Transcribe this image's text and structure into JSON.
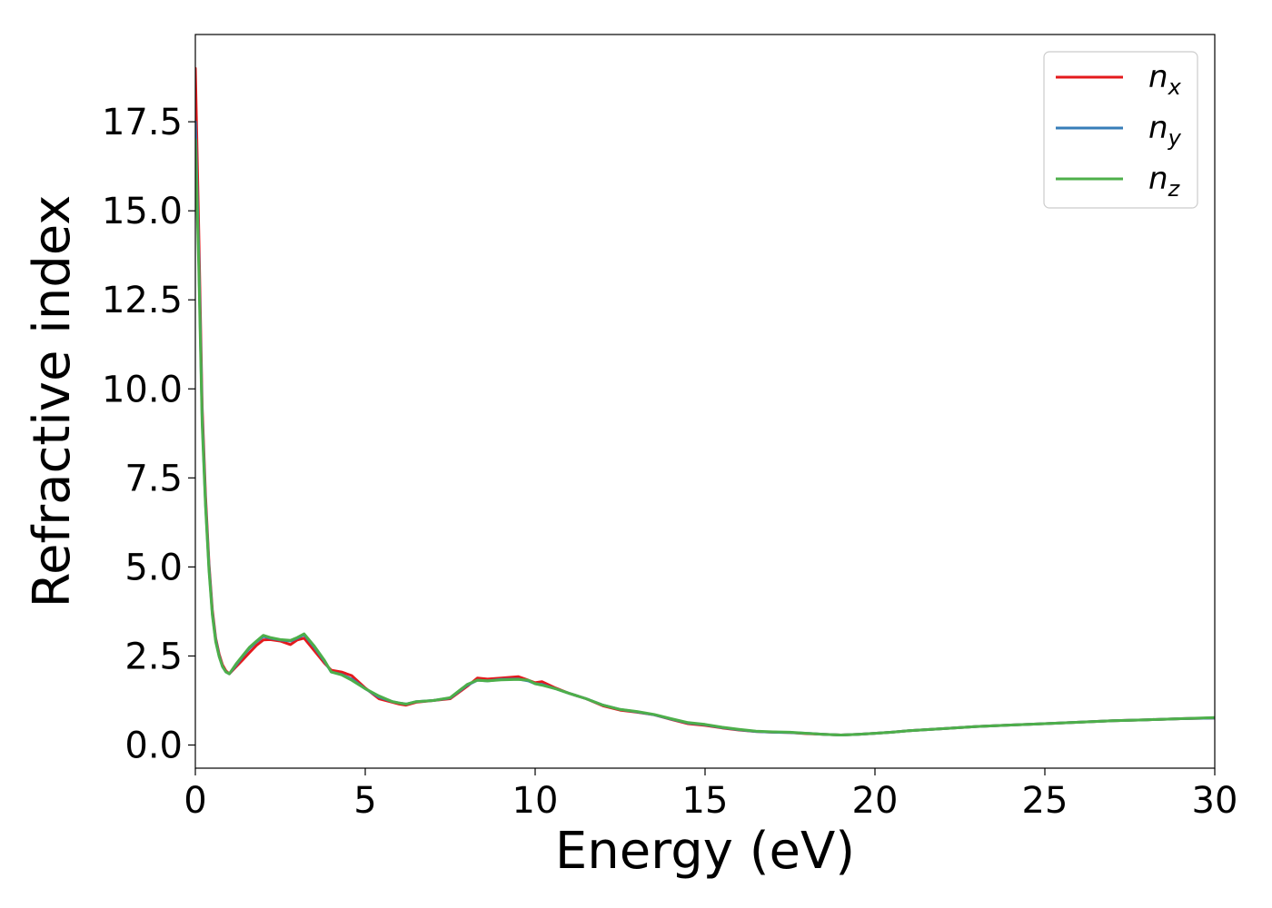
{
  "chart_data": {
    "type": "line",
    "title": "",
    "xlabel": "Energy (eV)",
    "ylabel": "Refractive index",
    "xlim": [
      0,
      30
    ],
    "ylim": [
      -0.65,
      19.95
    ],
    "xticks": [
      "0",
      "5",
      "10",
      "15",
      "20",
      "25",
      "30"
    ],
    "yticks": [
      "0.0",
      "2.5",
      "5.0",
      "7.5",
      "10.0",
      "12.5",
      "15.0",
      "17.5"
    ],
    "grid": false,
    "legend_position": "top-right",
    "series": [
      {
        "name": "n",
        "subscript": "x",
        "color": "#e41a1c",
        "x": [
          0,
          0.1,
          0.2,
          0.3,
          0.4,
          0.5,
          0.6,
          0.7,
          0.8,
          0.9,
          1.0,
          1.2,
          1.4,
          1.6,
          1.8,
          2.0,
          2.2,
          2.5,
          2.8,
          3.0,
          3.2,
          3.5,
          3.8,
          4.0,
          4.3,
          4.6,
          5.0,
          5.4,
          5.8,
          6.0,
          6.2,
          6.5,
          7.0,
          7.5,
          8.0,
          8.3,
          8.6,
          9.0,
          9.5,
          9.8,
          10.0,
          10.2,
          10.6,
          11.0,
          11.5,
          12.0,
          12.5,
          13.0,
          13.5,
          14.0,
          14.5,
          15.0,
          15.5,
          16.0,
          16.5,
          17.0,
          17.5,
          18.0,
          18.5,
          19.0,
          19.5,
          20.0,
          20.5,
          21.0,
          21.5,
          22.0,
          23.0,
          24.0,
          25.0,
          26.0,
          27.0,
          28.0,
          29.0,
          30.0
        ],
        "values": [
          19.0,
          14.5,
          9.5,
          7.0,
          5.1,
          3.8,
          3.0,
          2.55,
          2.25,
          2.08,
          2.0,
          2.2,
          2.4,
          2.6,
          2.8,
          2.95,
          2.96,
          2.92,
          2.82,
          2.95,
          3.0,
          2.65,
          2.3,
          2.1,
          2.05,
          1.95,
          1.6,
          1.3,
          1.2,
          1.15,
          1.12,
          1.2,
          1.25,
          1.3,
          1.65,
          1.88,
          1.85,
          1.88,
          1.92,
          1.82,
          1.75,
          1.78,
          1.6,
          1.45,
          1.3,
          1.1,
          0.98,
          0.92,
          0.85,
          0.72,
          0.6,
          0.55,
          0.48,
          0.42,
          0.38,
          0.36,
          0.35,
          0.32,
          0.3,
          0.28,
          0.3,
          0.33,
          0.36,
          0.4,
          0.43,
          0.46,
          0.52,
          0.56,
          0.6,
          0.64,
          0.68,
          0.71,
          0.74,
          0.76
        ]
      },
      {
        "name": "n",
        "subscript": "y",
        "color": "#377eb8",
        "x": [
          0,
          0.1,
          0.2,
          0.3,
          0.4,
          0.5,
          0.6,
          0.7,
          0.8,
          0.9,
          1.0,
          1.2,
          1.4,
          1.6,
          1.8,
          2.0,
          2.2,
          2.5,
          2.8,
          3.0,
          3.2,
          3.5,
          3.8,
          4.0,
          4.3,
          4.6,
          5.0,
          5.4,
          5.8,
          6.0,
          6.2,
          6.5,
          7.0,
          7.5,
          8.0,
          8.3,
          8.6,
          9.0,
          9.5,
          9.8,
          10.0,
          10.2,
          10.6,
          11.0,
          11.5,
          12.0,
          12.5,
          13.0,
          13.5,
          14.0,
          14.5,
          15.0,
          15.5,
          16.0,
          16.5,
          17.0,
          17.5,
          18.0,
          18.5,
          19.0,
          19.5,
          20.0,
          20.5,
          21.0,
          21.5,
          22.0,
          23.0,
          24.0,
          25.0,
          26.0,
          27.0,
          28.0,
          29.0,
          30.0
        ],
        "values": [
          17.5,
          13.8,
          9.2,
          6.8,
          5.0,
          3.7,
          2.95,
          2.5,
          2.2,
          2.05,
          2.0,
          2.25,
          2.5,
          2.72,
          2.9,
          3.05,
          3.0,
          2.95,
          2.92,
          3.0,
          3.1,
          2.75,
          2.35,
          2.05,
          1.98,
          1.85,
          1.58,
          1.35,
          1.22,
          1.18,
          1.15,
          1.22,
          1.25,
          1.32,
          1.68,
          1.82,
          1.8,
          1.84,
          1.85,
          1.8,
          1.72,
          1.7,
          1.58,
          1.45,
          1.3,
          1.12,
          1.0,
          0.93,
          0.85,
          0.73,
          0.62,
          0.57,
          0.49,
          0.43,
          0.38,
          0.36,
          0.35,
          0.33,
          0.3,
          0.28,
          0.3,
          0.33,
          0.36,
          0.4,
          0.43,
          0.46,
          0.52,
          0.56,
          0.6,
          0.64,
          0.68,
          0.71,
          0.74,
          0.76
        ]
      },
      {
        "name": "n",
        "subscript": "z",
        "color": "#4daf4a",
        "x": [
          0,
          0.1,
          0.2,
          0.3,
          0.4,
          0.5,
          0.6,
          0.7,
          0.8,
          0.9,
          1.0,
          1.2,
          1.4,
          1.6,
          1.8,
          2.0,
          2.2,
          2.5,
          2.8,
          3.0,
          3.2,
          3.5,
          3.8,
          4.0,
          4.3,
          4.6,
          5.0,
          5.4,
          5.8,
          6.0,
          6.2,
          6.5,
          7.0,
          7.5,
          8.0,
          8.3,
          8.6,
          9.0,
          9.5,
          9.8,
          10.0,
          10.2,
          10.6,
          11.0,
          11.5,
          12.0,
          12.5,
          13.0,
          13.5,
          14.0,
          14.5,
          15.0,
          15.5,
          16.0,
          16.5,
          17.0,
          17.5,
          18.0,
          18.5,
          19.0,
          19.5,
          20.0,
          20.5,
          21.0,
          21.5,
          22.0,
          23.0,
          24.0,
          25.0,
          26.0,
          27.0,
          28.0,
          29.0,
          30.0
        ],
        "values": [
          17.0,
          13.5,
          9.0,
          6.7,
          4.9,
          3.65,
          2.9,
          2.48,
          2.2,
          2.05,
          2.0,
          2.28,
          2.52,
          2.75,
          2.92,
          3.08,
          3.02,
          2.96,
          2.94,
          3.02,
          3.12,
          2.78,
          2.38,
          2.05,
          1.97,
          1.82,
          1.58,
          1.38,
          1.22,
          1.18,
          1.15,
          1.22,
          1.25,
          1.33,
          1.7,
          1.82,
          1.8,
          1.83,
          1.84,
          1.82,
          1.72,
          1.68,
          1.58,
          1.45,
          1.3,
          1.12,
          1.0,
          0.94,
          0.86,
          0.74,
          0.63,
          0.58,
          0.5,
          0.44,
          0.39,
          0.37,
          0.36,
          0.33,
          0.3,
          0.28,
          0.3,
          0.33,
          0.36,
          0.4,
          0.43,
          0.46,
          0.52,
          0.56,
          0.6,
          0.64,
          0.68,
          0.71,
          0.74,
          0.77
        ]
      }
    ]
  }
}
